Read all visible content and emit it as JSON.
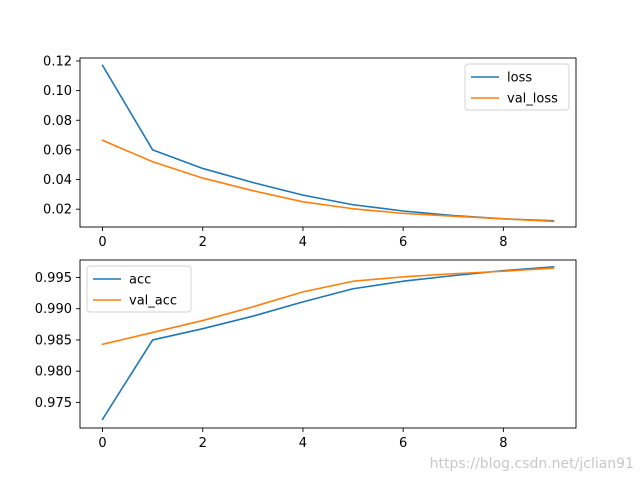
{
  "watermark": "https://blog.csdn.net/jclian91",
  "colors": {
    "train": "#1f77b4",
    "val": "#ff7f0e"
  },
  "chart_data": [
    {
      "type": "line",
      "x": [
        0,
        1,
        2,
        3,
        4,
        5,
        6,
        7,
        8,
        9
      ],
      "xticks": [
        "0",
        "2",
        "4",
        "6",
        "8"
      ],
      "yticks": [
        "0.02",
        "0.04",
        "0.06",
        "0.08",
        "0.10",
        "0.12"
      ],
      "ylim": [
        0.008,
        0.122
      ],
      "xlim": [
        -0.45,
        9.45
      ],
      "legend_position": "top-right",
      "series": [
        {
          "name": "loss",
          "color": "#1f77b4",
          "values": [
            0.117,
            0.06,
            0.0475,
            0.038,
            0.0295,
            0.023,
            0.0188,
            0.0157,
            0.0135,
            0.0122
          ]
        },
        {
          "name": "val_loss",
          "color": "#ff7f0e",
          "values": [
            0.0665,
            0.052,
            0.041,
            0.0325,
            0.025,
            0.0203,
            0.0172,
            0.0153,
            0.0135,
            0.0118
          ]
        }
      ]
    },
    {
      "type": "line",
      "x": [
        0,
        1,
        2,
        3,
        4,
        5,
        6,
        7,
        8,
        9
      ],
      "xticks": [
        "0",
        "2",
        "4",
        "6",
        "8"
      ],
      "yticks": [
        "0.975",
        "0.980",
        "0.985",
        "0.990",
        "0.995"
      ],
      "ylim": [
        0.9709,
        0.9978
      ],
      "xlim": [
        -0.45,
        9.45
      ],
      "legend_position": "top-left",
      "series": [
        {
          "name": "acc",
          "color": "#1f77b4",
          "values": [
            0.9723,
            0.985,
            0.9868,
            0.9888,
            0.9911,
            0.9932,
            0.9944,
            0.9953,
            0.9961,
            0.9967
          ]
        },
        {
          "name": "val_acc",
          "color": "#ff7f0e",
          "values": [
            0.9843,
            0.9862,
            0.9881,
            0.9903,
            0.9927,
            0.9944,
            0.9951,
            0.9956,
            0.996,
            0.9965
          ]
        }
      ]
    }
  ]
}
